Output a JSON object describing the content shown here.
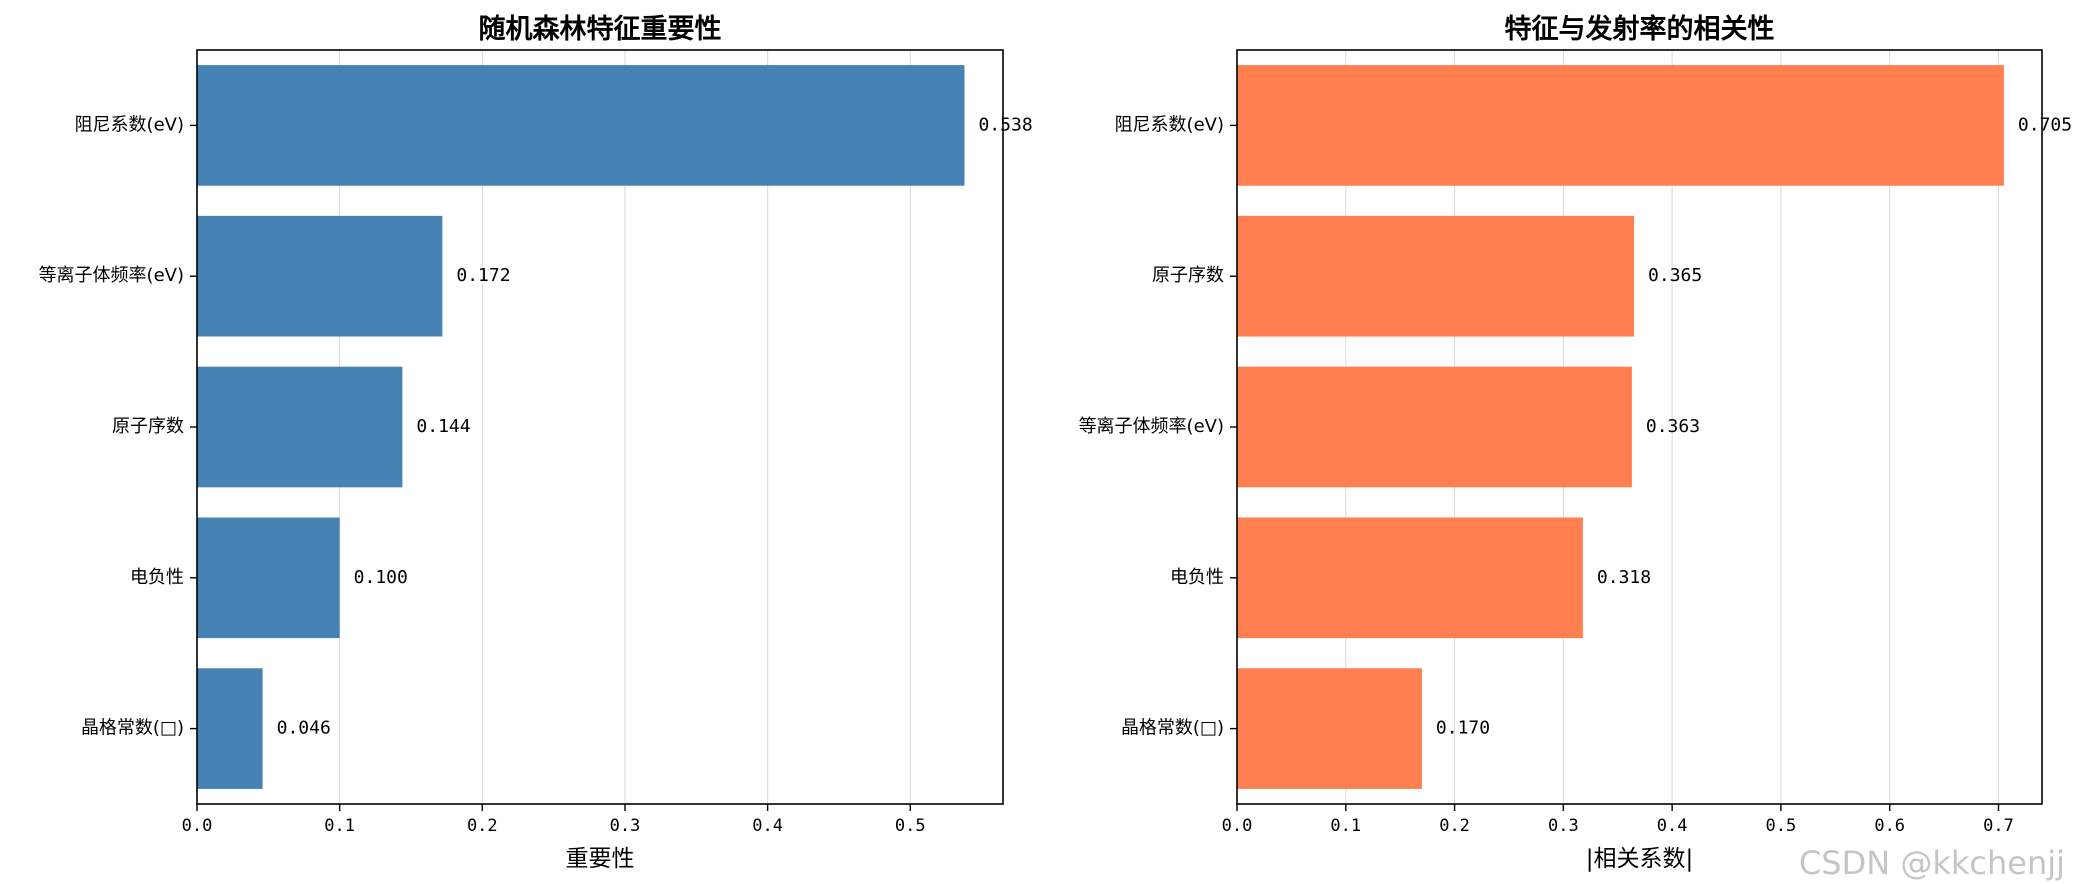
{
  "watermark": "CSDN @kkchenjj",
  "chart_data": [
    {
      "type": "bar",
      "orientation": "horizontal",
      "title": "随机森林特征重要性",
      "xlabel": "重要性",
      "ylabel": "",
      "categories": [
        "阻尼系数(eV)",
        "等离子体频率(eV)",
        "原子序数",
        "电负性",
        "晶格常数(□)"
      ],
      "values": [
        0.538,
        0.172,
        0.144,
        0.1,
        0.046
      ],
      "value_labels": [
        "0.538",
        "0.172",
        "0.144",
        "0.100",
        "0.046"
      ],
      "xlim": [
        0,
        0.565
      ],
      "xticks": [
        0.0,
        0.1,
        0.2,
        0.3,
        0.4,
        0.5
      ],
      "xtick_labels": [
        "0.0",
        "0.1",
        "0.2",
        "0.3",
        "0.4",
        "0.5"
      ],
      "grid": "x",
      "color": "#4682b4"
    },
    {
      "type": "bar",
      "orientation": "horizontal",
      "title": "特征与发射率的相关性",
      "xlabel": "|相关系数|",
      "ylabel": "",
      "categories": [
        "阻尼系数(eV)",
        "原子序数",
        "等离子体频率(eV)",
        "电负性",
        "晶格常数(□)"
      ],
      "values": [
        0.705,
        0.365,
        0.363,
        0.318,
        0.17
      ],
      "value_labels": [
        "0.705",
        "0.365",
        "0.363",
        "0.318",
        "0.170"
      ],
      "xlim": [
        0,
        0.74
      ],
      "xticks": [
        0.0,
        0.1,
        0.2,
        0.3,
        0.4,
        0.5,
        0.6,
        0.7
      ],
      "xtick_labels": [
        "0.0",
        "0.1",
        "0.2",
        "0.3",
        "0.4",
        "0.5",
        "0.6",
        "0.7"
      ],
      "grid": "x",
      "color": "#ff7f50"
    }
  ]
}
